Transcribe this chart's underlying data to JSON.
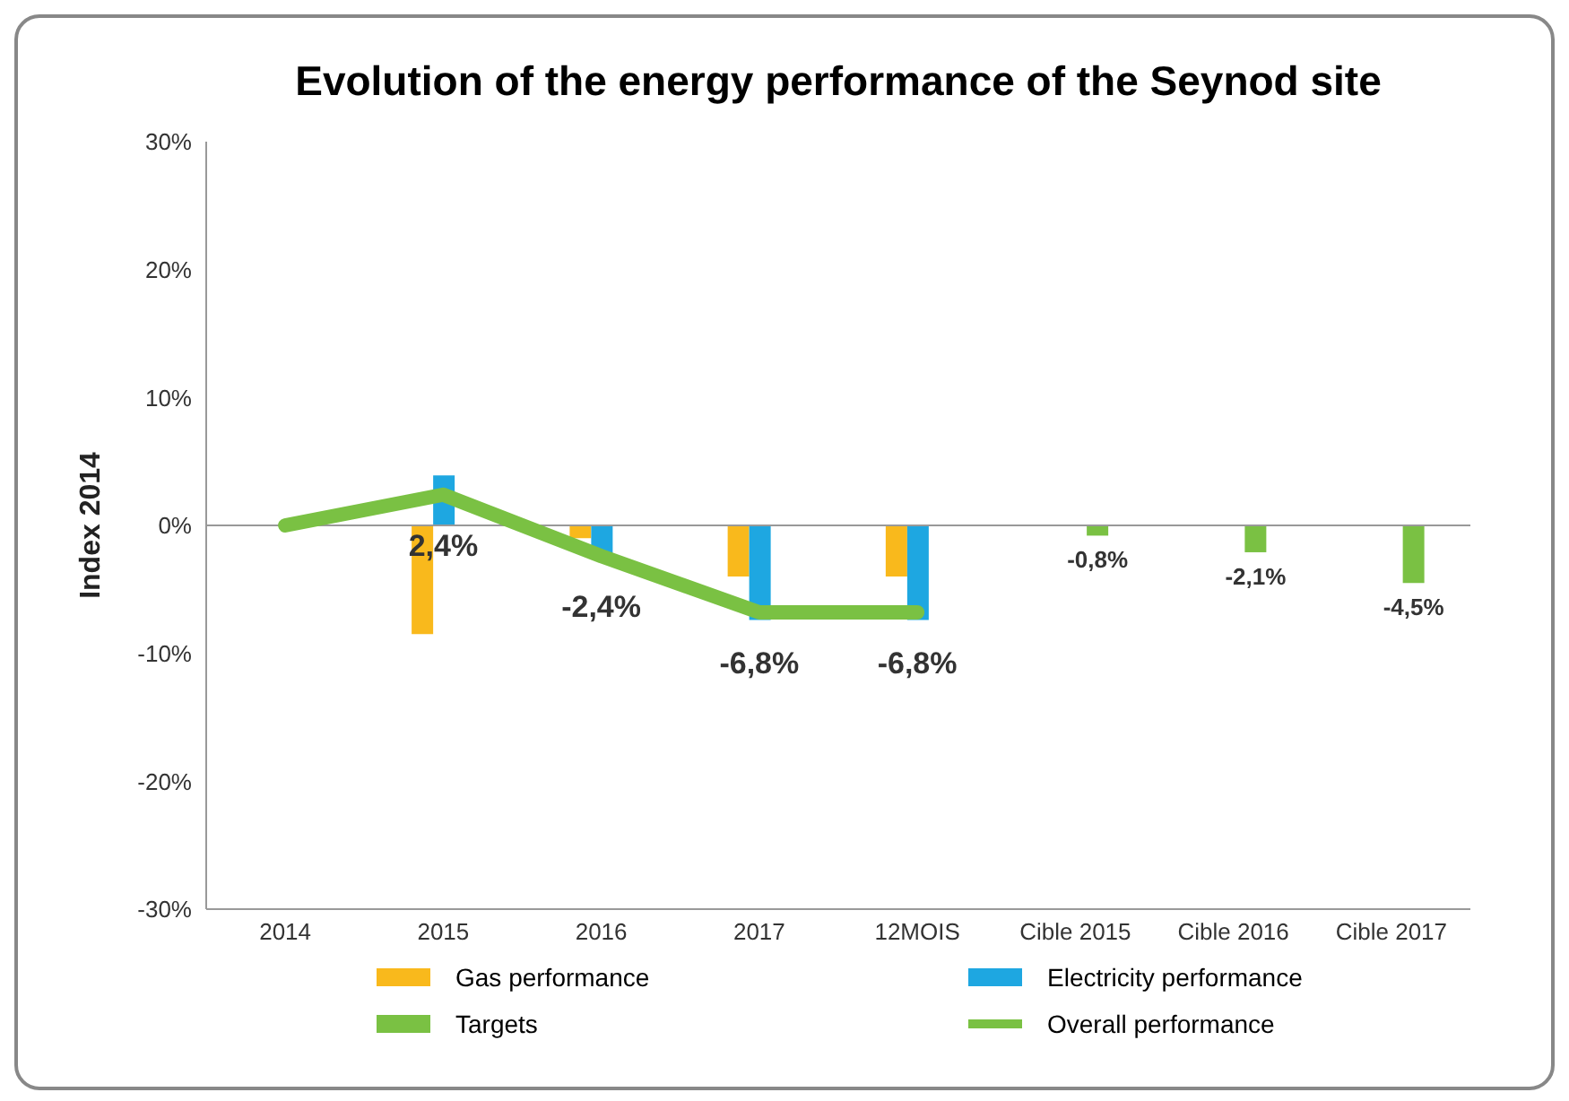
{
  "chart_data": {
    "type": "bar",
    "title": "Evolution of the energy performance of the Seynod site",
    "ylabel": "Index 2014",
    "categories": [
      "2014",
      "2015",
      "2016",
      "2017",
      "12MOIS",
      "Cible 2015",
      "Cible 2016",
      "Cible 2017"
    ],
    "series": [
      {
        "name": "Gas performance",
        "color": "#f9b91c",
        "values": [
          null,
          -8.5,
          -1.0,
          -4.0,
          -4.0,
          null,
          null,
          null
        ]
      },
      {
        "name": "Electricity performance",
        "color": "#1ea7e1",
        "values": [
          null,
          3.9,
          -2.2,
          -7.4,
          -7.4,
          null,
          null,
          null
        ]
      },
      {
        "name": "Targets",
        "color": "#7ac143",
        "values": [
          null,
          null,
          null,
          null,
          null,
          -0.8,
          -2.1,
          -4.5
        ],
        "value_labels": [
          null,
          null,
          null,
          null,
          null,
          "-0,8%",
          "-2,1%",
          "-4,5%"
        ]
      },
      {
        "name": "Overall performance",
        "type": "line",
        "color": "#7ac143",
        "values": [
          0,
          2.4,
          -2.4,
          -6.8,
          -6.8,
          null,
          null,
          null
        ],
        "value_labels": [
          null,
          "2,4%",
          "-2,4%",
          "-6,8%",
          "-6,8%",
          null,
          null,
          null
        ]
      }
    ],
    "ylim": [
      -30,
      30
    ],
    "yticks": [
      {
        "value": -30,
        "label": "-30%"
      },
      {
        "value": -20,
        "label": "-20%"
      },
      {
        "value": -10,
        "label": "-10%"
      },
      {
        "value": 0,
        "label": "0%"
      },
      {
        "value": 10,
        "label": "10%"
      },
      {
        "value": 20,
        "label": "20%"
      },
      {
        "value": 30,
        "label": "30%"
      }
    ],
    "ref_lines": [
      {
        "axis": "y",
        "value": 0,
        "color": "#999999"
      }
    ],
    "grid": false,
    "legend": "bottom",
    "marker": "none",
    "line_style": "solid"
  }
}
